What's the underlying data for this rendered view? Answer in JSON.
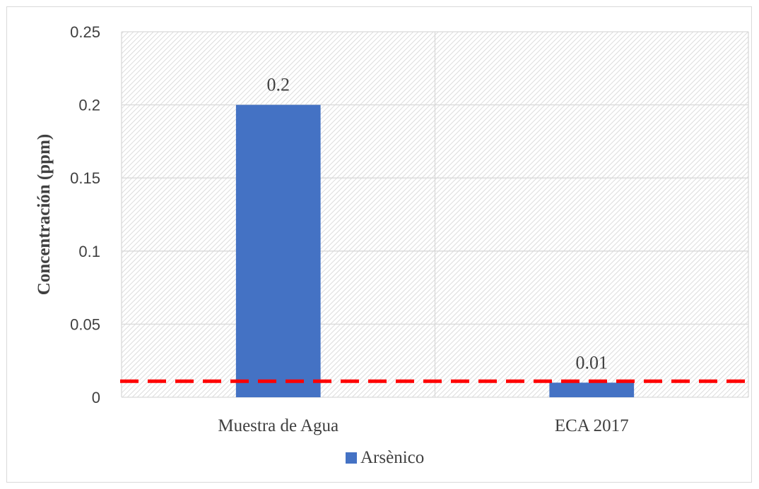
{
  "colors": {
    "bar": "#4472c4",
    "reference_line": "#ff0000",
    "gridline": "#d9d9d9",
    "axis_text": "#404040"
  },
  "chart_data": {
    "type": "bar",
    "title": "",
    "xlabel": "",
    "ylabel": "Concentración (ppm)",
    "categories": [
      "Muestra de Agua",
      "ECA 2017"
    ],
    "series": [
      {
        "name": "Arsènico",
        "values": [
          0.2,
          0.01
        ],
        "data_labels": [
          "0.2",
          "0.01"
        ]
      }
    ],
    "ylim": [
      0,
      0.25
    ],
    "yticks": [
      0,
      0.05,
      0.1,
      0.15,
      0.2,
      0.25
    ],
    "ytick_labels": [
      "0",
      "0.05",
      "0.1",
      "0.15",
      "0.2",
      "0.25"
    ],
    "reference_line": {
      "value": 0.011,
      "style": "dashed",
      "color": "#ff0000"
    },
    "grid": true,
    "plot_background": "diagonal-hatch",
    "legend": {
      "position": "bottom",
      "entries": [
        "Arsènico"
      ]
    }
  }
}
